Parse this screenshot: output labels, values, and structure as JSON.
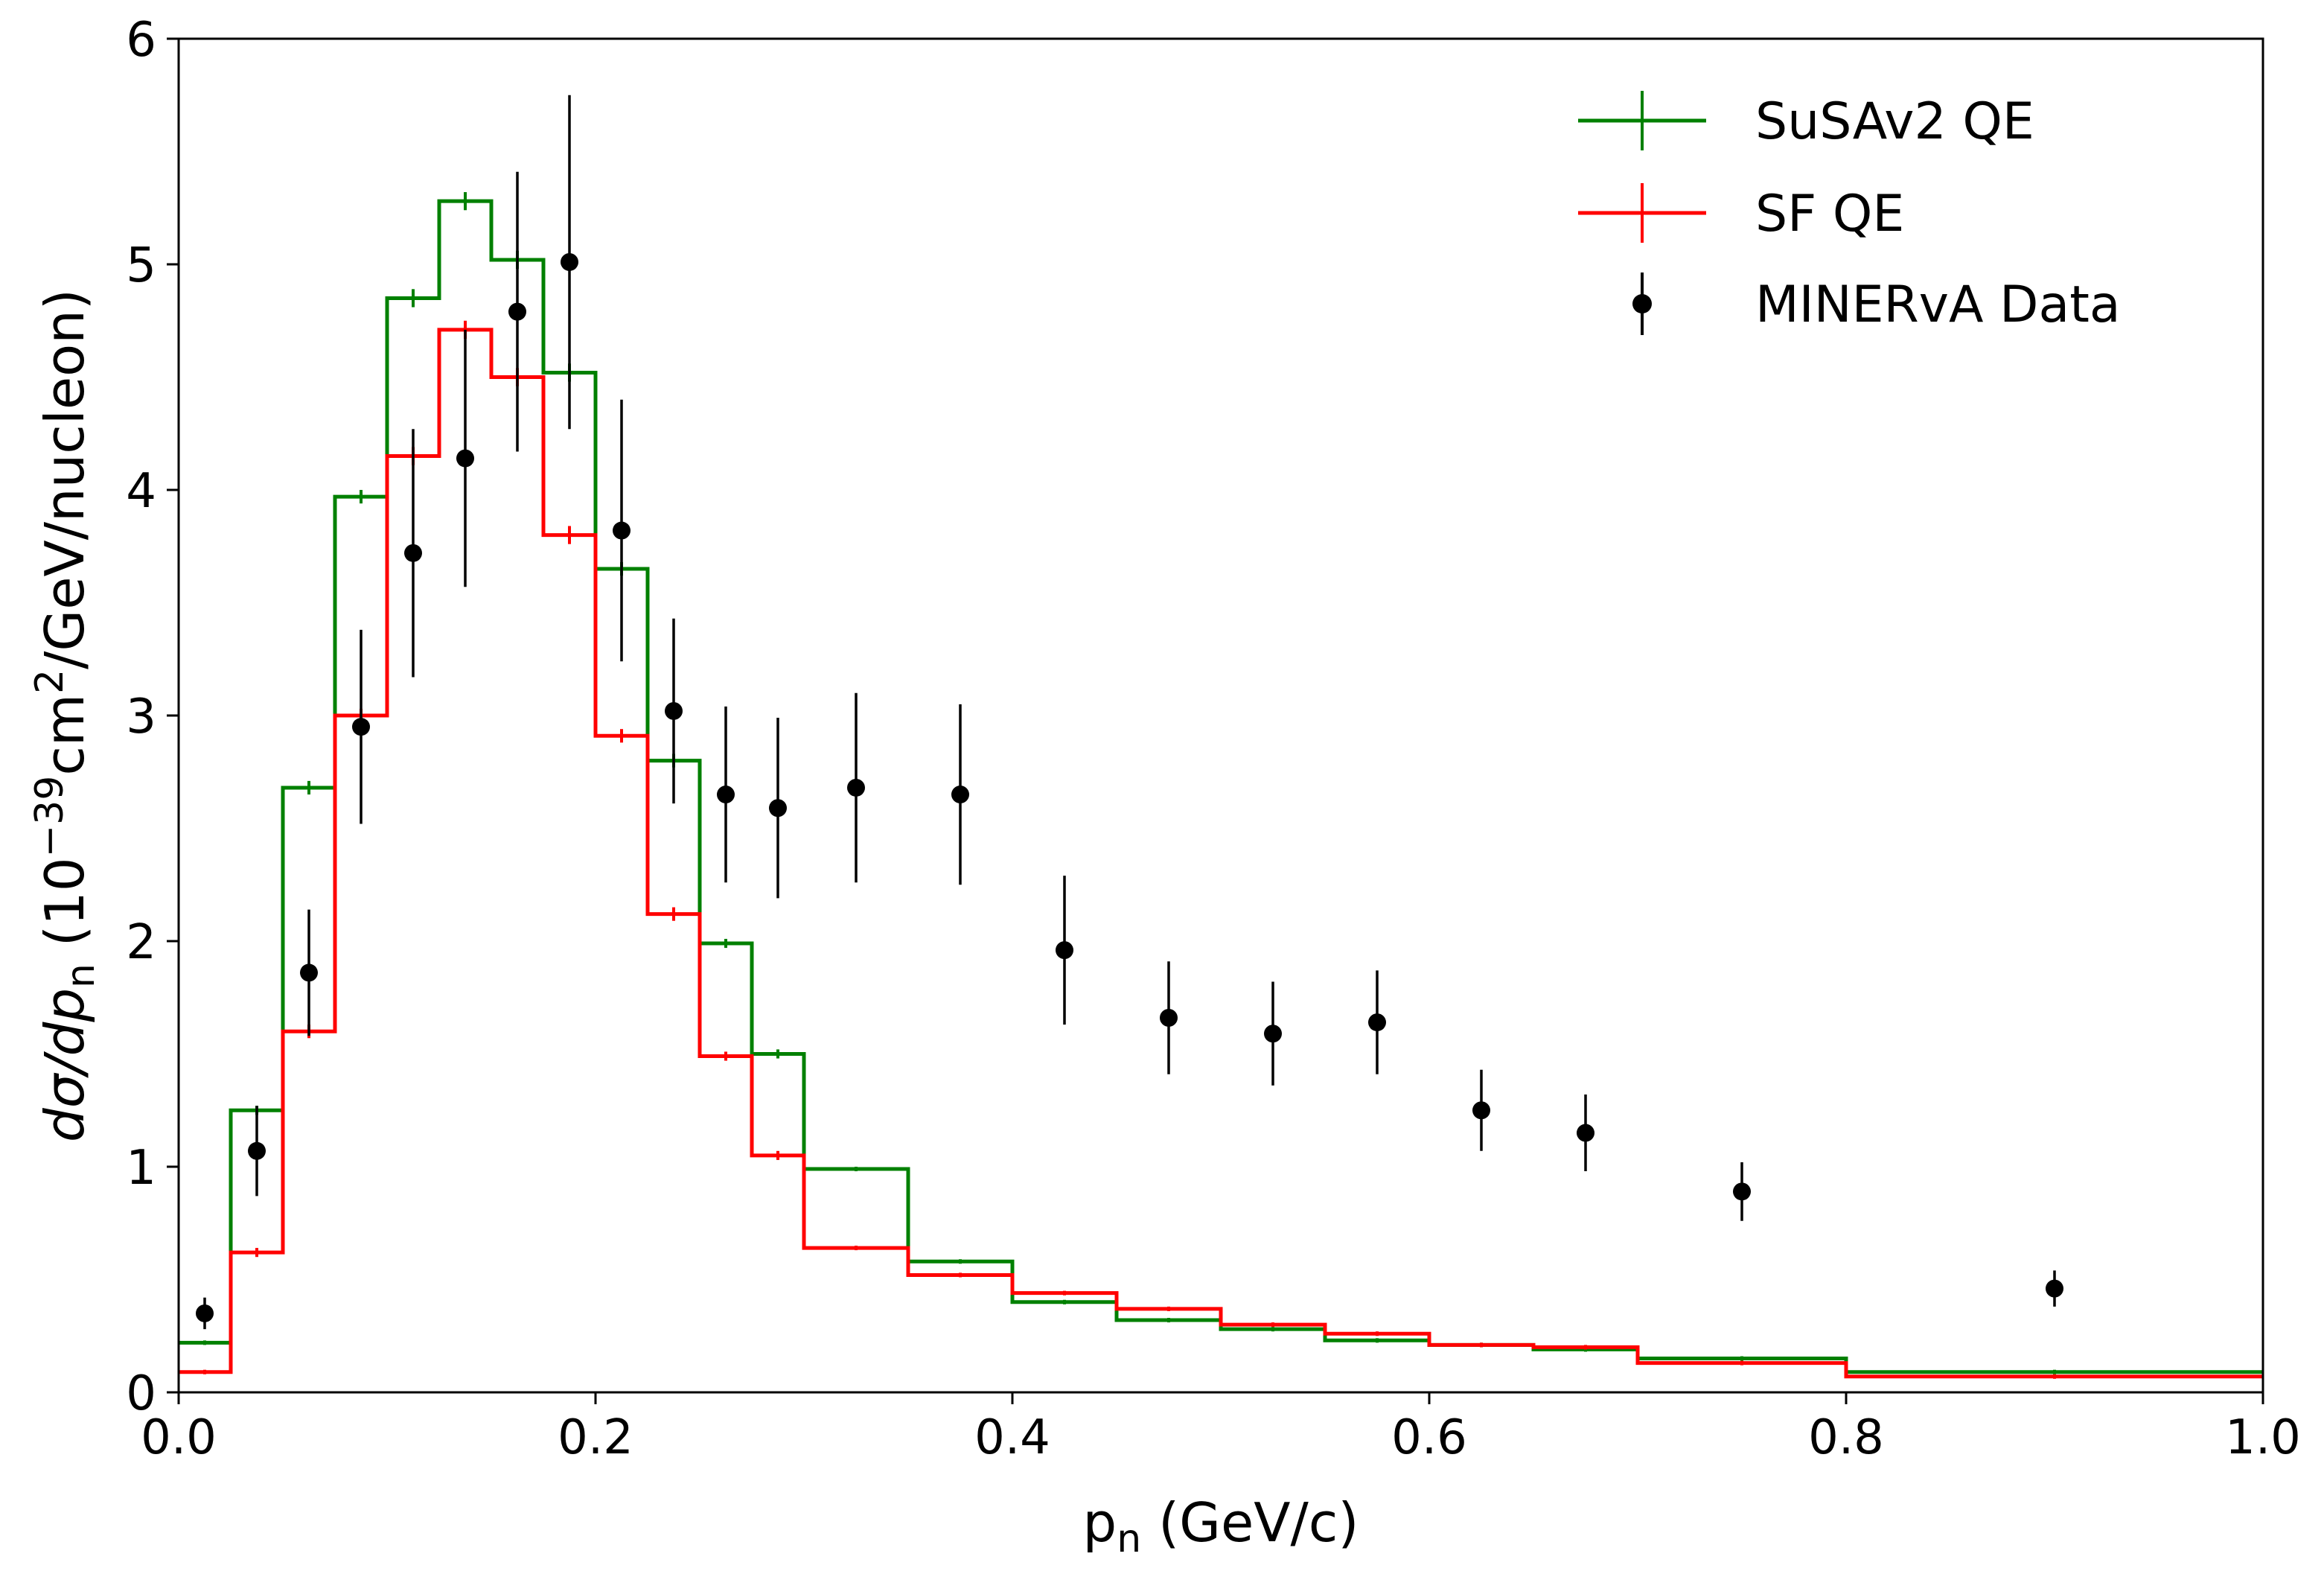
{
  "chart_data": {
    "type": "histogram-with-errorbars",
    "xlim": [
      0.0,
      1.0
    ],
    "ylim": [
      0,
      6
    ],
    "x_ticks": [
      "0.0",
      "0.2",
      "0.4",
      "0.6",
      "0.8",
      "1.0"
    ],
    "y_ticks": [
      "0",
      "1",
      "2",
      "3",
      "4",
      "5",
      "6"
    ],
    "xlabel": {
      "main": "p",
      "sub": "n",
      "rest": " (GeV/c)"
    },
    "ylabel": {
      "p1": "dσ/dp",
      "sub": "n",
      "p2": " (10",
      "sup1": "−39",
      "p3": "cm",
      "sup2": "2",
      "p4": "/GeV/nucleon)"
    },
    "legend_position": "top-right",
    "grid": false,
    "bin_edges": [
      0,
      0.025,
      0.05,
      0.075,
      0.1,
      0.125,
      0.15,
      0.175,
      0.2,
      0.225,
      0.25,
      0.275,
      0.3,
      0.35,
      0.4,
      0.45,
      0.5,
      0.55,
      0.6,
      0.65,
      0.7,
      0.8,
      1.0
    ],
    "series": [
      {
        "name": "SuSAv2 QE",
        "color": "#008000",
        "kind": "step",
        "values": [
          0.22,
          1.25,
          2.68,
          3.97,
          4.85,
          5.28,
          5.02,
          4.52,
          3.65,
          2.8,
          1.99,
          1.5,
          0.99,
          0.58,
          0.4,
          0.32,
          0.28,
          0.23,
          0.21,
          0.19,
          0.15,
          0.09
        ],
        "errors": [
          0.01,
          0.02,
          0.03,
          0.03,
          0.04,
          0.04,
          0.04,
          0.04,
          0.03,
          0.03,
          0.02,
          0.02,
          0.01,
          0.01,
          0.01,
          0.01,
          0.01,
          0.01,
          0.01,
          0.01,
          0.01,
          0.01
        ]
      },
      {
        "name": "SF QE",
        "color": "#ff0000",
        "kind": "step",
        "values": [
          0.09,
          0.62,
          1.6,
          3.0,
          4.15,
          4.71,
          4.5,
          3.8,
          2.91,
          2.12,
          1.49,
          1.05,
          0.64,
          0.52,
          0.44,
          0.37,
          0.3,
          0.26,
          0.21,
          0.2,
          0.13,
          0.07
        ],
        "errors": [
          0.01,
          0.02,
          0.03,
          0.03,
          0.04,
          0.04,
          0.04,
          0.04,
          0.03,
          0.03,
          0.02,
          0.02,
          0.01,
          0.01,
          0.01,
          0.01,
          0.01,
          0.01,
          0.01,
          0.01,
          0.01,
          0.01
        ]
      }
    ],
    "data_points": {
      "name": "MINERvA Data",
      "color": "#000000",
      "points": [
        {
          "x": 0.0125,
          "y": 0.35,
          "err": 0.07
        },
        {
          "x": 0.0375,
          "y": 1.07,
          "err": 0.2
        },
        {
          "x": 0.0625,
          "y": 1.86,
          "err": 0.28
        },
        {
          "x": 0.0875,
          "y": 2.95,
          "err": 0.43
        },
        {
          "x": 0.1125,
          "y": 3.72,
          "err": 0.55
        },
        {
          "x": 0.1375,
          "y": 4.14,
          "err": 0.57
        },
        {
          "x": 0.1625,
          "y": 4.79,
          "err": 0.62
        },
        {
          "x": 0.1875,
          "y": 5.01,
          "err": 0.74
        },
        {
          "x": 0.2125,
          "y": 3.82,
          "err": 0.58
        },
        {
          "x": 0.2375,
          "y": 3.02,
          "err": 0.41
        },
        {
          "x": 0.2625,
          "y": 2.65,
          "err": 0.39
        },
        {
          "x": 0.2875,
          "y": 2.59,
          "err": 0.4
        },
        {
          "x": 0.325,
          "y": 2.68,
          "err": 0.42
        },
        {
          "x": 0.375,
          "y": 2.65,
          "err": 0.4
        },
        {
          "x": 0.425,
          "y": 1.96,
          "err": 0.33
        },
        {
          "x": 0.475,
          "y": 1.66,
          "err": 0.25
        },
        {
          "x": 0.525,
          "y": 1.59,
          "err": 0.23
        },
        {
          "x": 0.575,
          "y": 1.64,
          "err": 0.23
        },
        {
          "x": 0.625,
          "y": 1.25,
          "err": 0.18
        },
        {
          "x": 0.675,
          "y": 1.15,
          "err": 0.17
        },
        {
          "x": 0.75,
          "y": 0.89,
          "err": 0.13
        },
        {
          "x": 0.9,
          "y": 0.46,
          "err": 0.08
        }
      ]
    }
  }
}
